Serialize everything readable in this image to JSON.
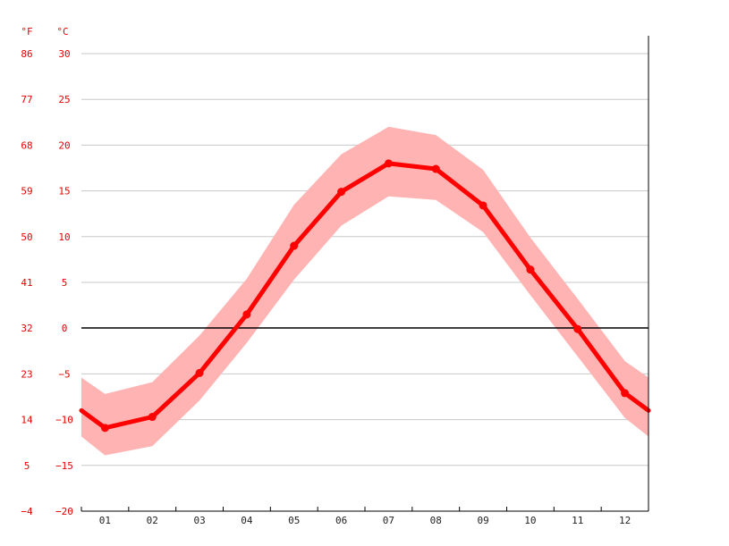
{
  "chart_data": {
    "type": "line",
    "title": "",
    "xlabel": "",
    "ylabel": "",
    "units": {
      "f": "°F",
      "c": "°C"
    },
    "y_ticks_c": [
      "30",
      "25",
      "20",
      "15",
      "10",
      "5",
      "0",
      "−5",
      "−10",
      "−15",
      "−20"
    ],
    "y_ticks_f": [
      "86",
      "77",
      "68",
      "59",
      "50",
      "41",
      "32",
      "23",
      "14",
      "5",
      "−4"
    ],
    "ylim_c": [
      -20,
      30
    ],
    "categories": [
      "01",
      "02",
      "03",
      "04",
      "05",
      "06",
      "07",
      "08",
      "09",
      "10",
      "11",
      "12"
    ],
    "series": [
      {
        "role": "average",
        "values": [
          -10.9,
          -9.7,
          -4.9,
          1.5,
          9.0,
          14.9,
          18.0,
          17.4,
          13.4,
          6.4,
          -0.1,
          -7.1
        ]
      },
      {
        "role": "max",
        "values": [
          -7.2,
          -5.9,
          -0.8,
          5.4,
          13.5,
          19.0,
          22.0,
          21.1,
          17.3,
          9.9,
          3.2,
          -3.6
        ]
      },
      {
        "role": "min",
        "values": [
          -13.9,
          -12.9,
          -7.9,
          -1.6,
          5.3,
          11.2,
          14.4,
          14.0,
          10.5,
          3.6,
          -3.1,
          -9.8
        ]
      }
    ],
    "grid": true,
    "colors": {
      "line": "#ff0000",
      "band": "#ffb3b3",
      "tick_text": "#e60000",
      "grid": "#c8c8c8",
      "zero_line": "#000000"
    }
  }
}
